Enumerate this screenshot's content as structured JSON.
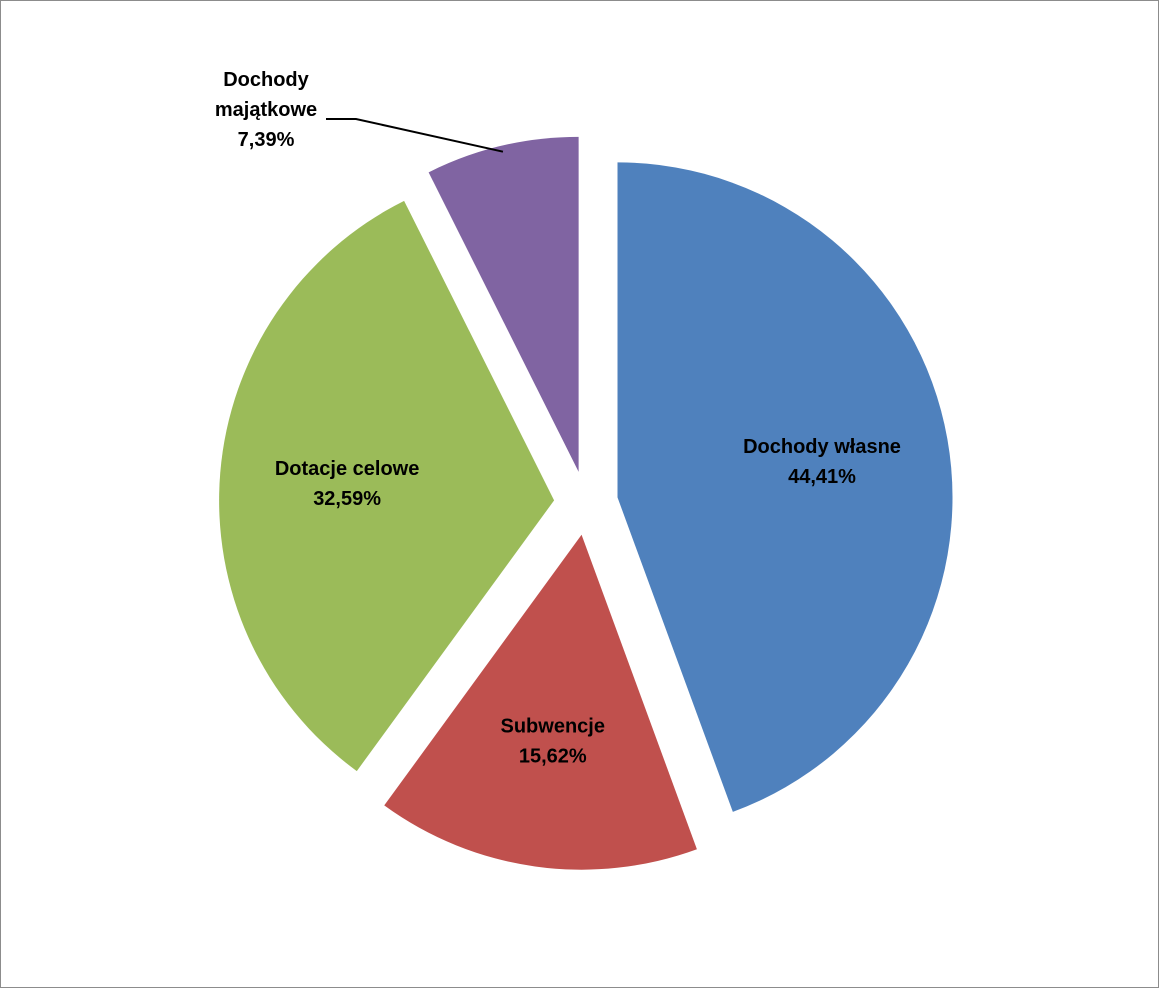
{
  "chart_data": {
    "type": "pie",
    "title": "",
    "slices": [
      {
        "name": "Dochody własne",
        "value": 44.41,
        "label": "44,41%",
        "color": "#4f81bd",
        "exploded": true
      },
      {
        "name": "Subwencje",
        "value": 15.62,
        "label": "15,62%",
        "color": "#c0504d",
        "exploded": true
      },
      {
        "name": "Dotacje celowe",
        "value": 32.59,
        "label": "32,59%",
        "color": "#9bbb59",
        "exploded": true
      },
      {
        "name": "Dochody majątkowe",
        "value": 7.39,
        "label": "7,39%",
        "color": "#8064a2",
        "exploded": true,
        "name_lines": [
          "Dochody",
          "majątkowe"
        ]
      }
    ],
    "start_angle_deg": 0,
    "direction": "clockwise",
    "legend": "none",
    "labels_inside": true
  }
}
